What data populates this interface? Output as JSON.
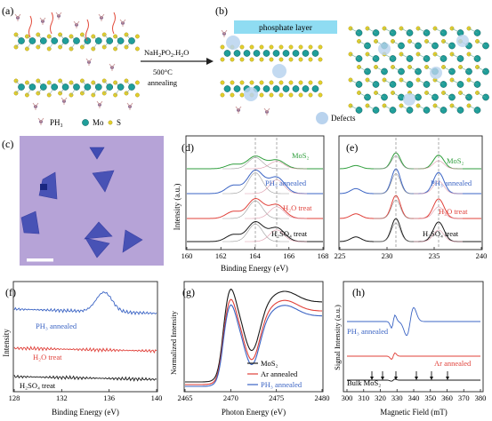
{
  "panels": {
    "a": {
      "letter": "(a)",
      "arrow_top": "NaH",
      "arrow_top_sub1": "2",
      "arrow_top_mid": "PO",
      "arrow_top_sub2": "2",
      "arrow_top_end": ".H",
      "arrow_top_sub3": "2",
      "arrow_top_o": "O",
      "arrow_bottom_1": "500°C",
      "arrow_bottom_2": "annealing",
      "legend": [
        "PH₃",
        "Mo",
        "S"
      ]
    },
    "b": {
      "letter": "(b)",
      "layer_label": "phosphate layer",
      "defects_label": "Defects"
    },
    "c": {
      "letter": "(c)"
    },
    "d": {
      "letter": "(d)",
      "ylabel": "Intensity (a.u.)",
      "xlabel": "Binding Energy (eV)",
      "xticks": [
        "160",
        "162",
        "164",
        "166",
        "168"
      ],
      "traces": [
        "MoS₂",
        "PH₃ annealed",
        "H₂O treat",
        "H₂SO₄ treat"
      ]
    },
    "e": {
      "letter": "(e)",
      "xticks": [
        "225",
        "230",
        "235",
        "240"
      ],
      "traces": [
        "MoS₂",
        "PH₃ annealed",
        "H₂O treat",
        "H₂SO₄ treat"
      ]
    },
    "f": {
      "letter": "(f)",
      "ylabel": "Intensity",
      "xlabel": "Binding Energy (eV)",
      "xticks": [
        "128",
        "132",
        "136",
        "140"
      ],
      "traces": [
        "PH₃ annealed",
        "H₂O treat",
        "H₂SO₄ treat"
      ]
    },
    "g": {
      "letter": "(g)",
      "ylabel": "Normalized Intensity",
      "xlabel": "Photon Energy (eV)",
      "xticks": [
        "2465",
        "2470",
        "2475",
        "2480"
      ],
      "legend": [
        "MoS₂",
        "Ar annealed",
        "PH₃ annealed"
      ]
    },
    "h": {
      "letter": "(h)",
      "ylabel": "Signal Intensity (a.u.)",
      "xlabel": "Magnetic Field (mT)",
      "xticks": [
        "300",
        "310",
        "320",
        "330",
        "340",
        "350",
        "360",
        "370",
        "380"
      ],
      "traces": [
        "PH₃ annealed",
        "Ar annealed",
        "Bulk MoS₂"
      ]
    }
  },
  "colors": {
    "mo": "#1f9e9a",
    "s": "#e3cf2a",
    "phosphate_layer": "#8fdcf2",
    "defect": "#b9d3ee",
    "microscopy_bg": "#b6a3d7",
    "flake": "#2e3ea6",
    "black_trace": "#1a1a1a",
    "red_trace": "#e0413a",
    "blue_trace": "#3b64c4",
    "green_trace": "#2f9e3c"
  }
}
